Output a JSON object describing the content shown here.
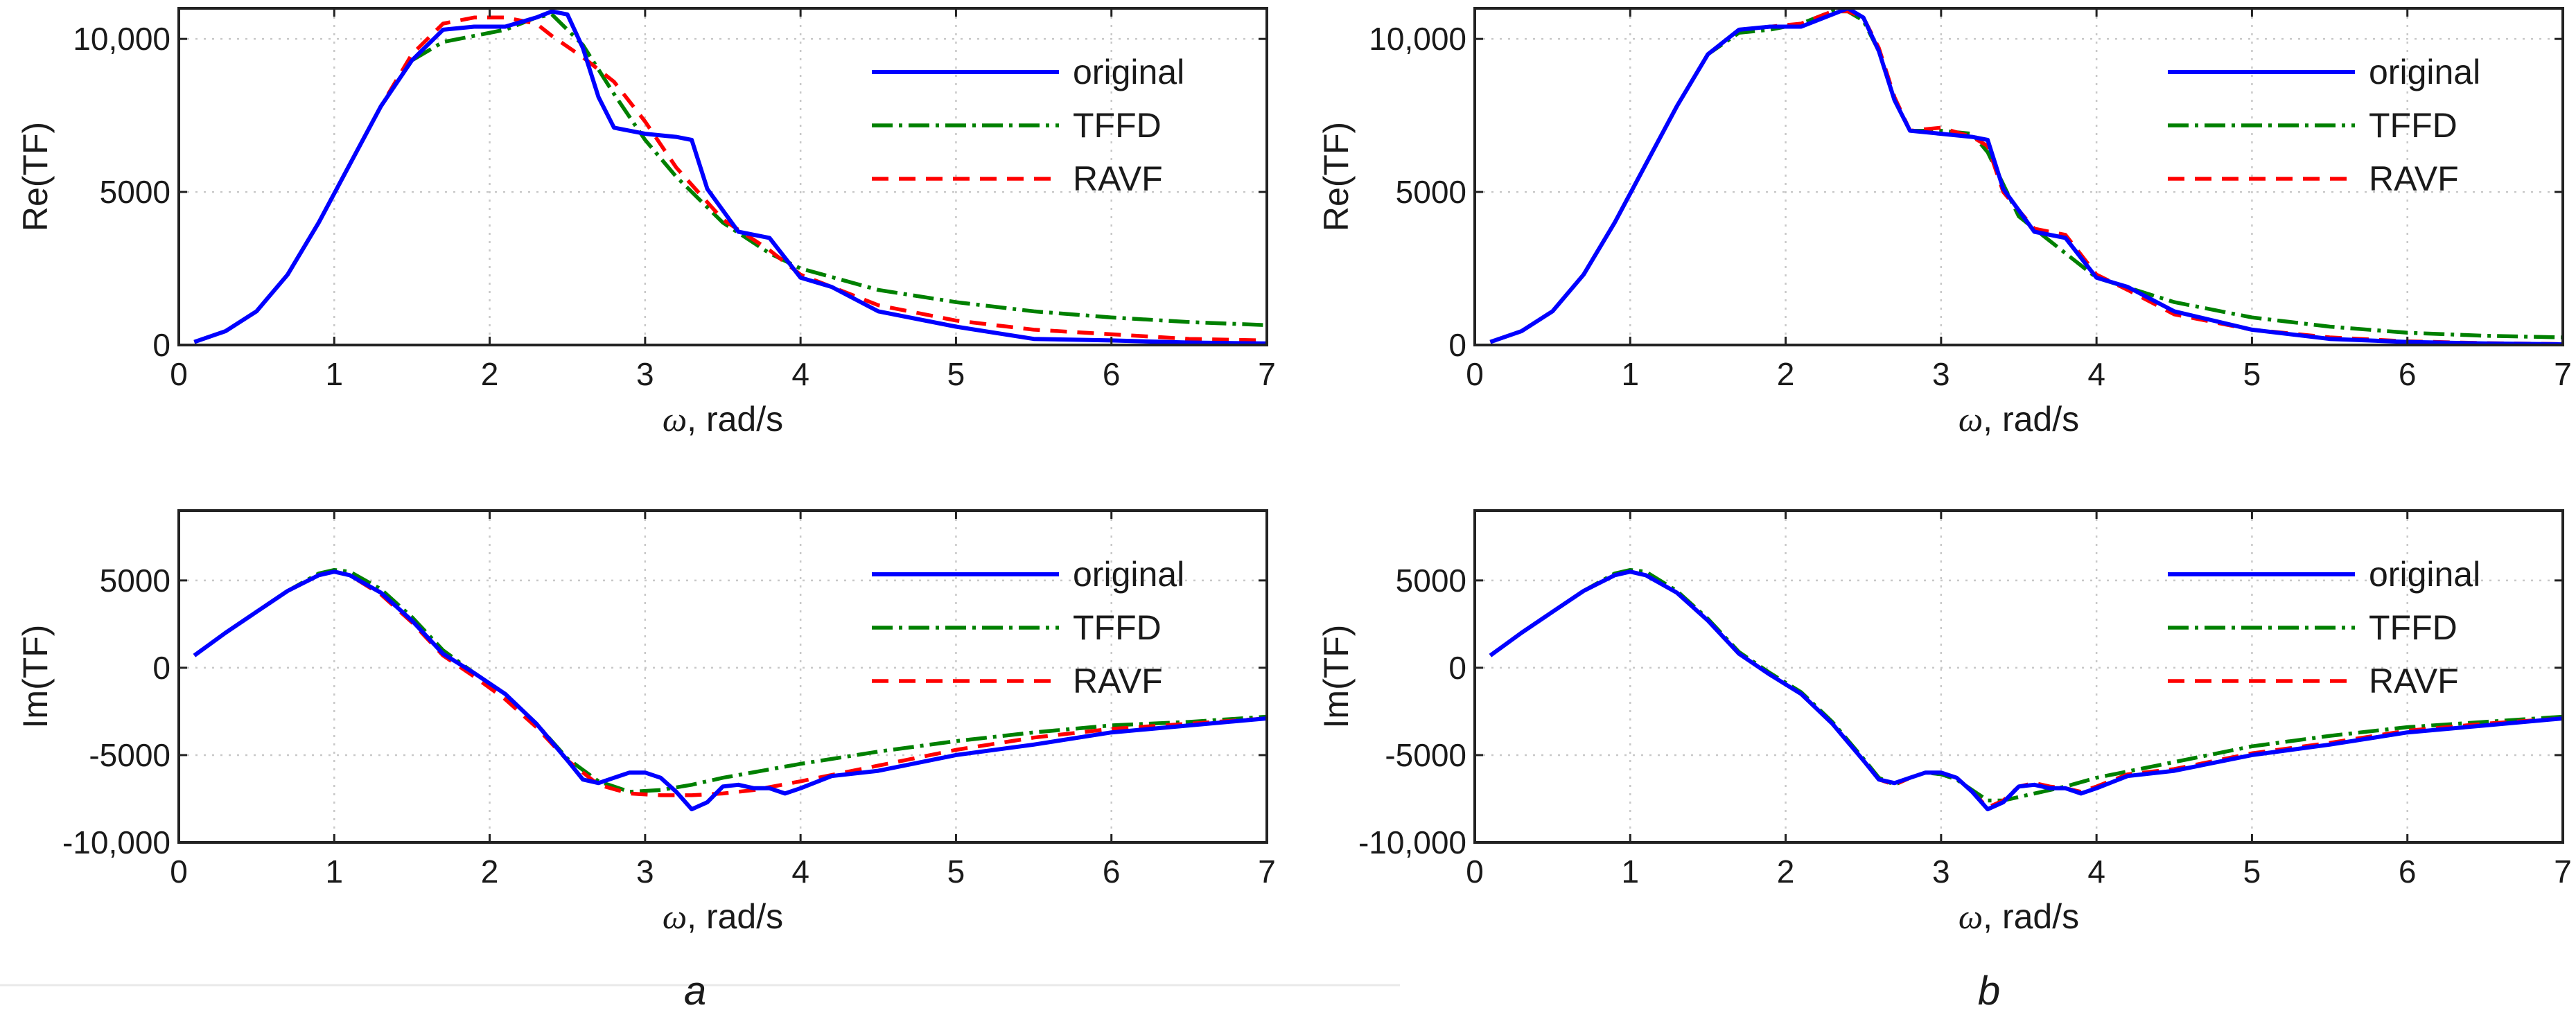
{
  "figure": {
    "panel_labels": [
      "a",
      "b"
    ]
  },
  "legend": {
    "items": [
      {
        "label": "original",
        "color": "#0000ff",
        "style": "solid"
      },
      {
        "label": "TFFD",
        "color": "#008000",
        "style": "dashdot"
      },
      {
        "label": "RAVF",
        "color": "#ff0000",
        "style": "dashed"
      }
    ]
  },
  "chart_data": [
    {
      "id": "a-re",
      "type": "line",
      "panel": "a",
      "title": "",
      "xlabel": "ω, rad/s",
      "ylabel": "Re(TF)",
      "xlim": [
        0,
        7
      ],
      "ylim": [
        0,
        11000
      ],
      "xticks": [
        0,
        1,
        2,
        3,
        4,
        5,
        6,
        7
      ],
      "yticks": [
        0,
        5000,
        10000
      ],
      "ytick_labels": [
        "0",
        "5000",
        "10,000"
      ],
      "series": [
        {
          "name": "original",
          "x": [
            0.1,
            0.3,
            0.5,
            0.7,
            0.9,
            1.1,
            1.3,
            1.5,
            1.7,
            1.9,
            2.1,
            2.3,
            2.4,
            2.5,
            2.6,
            2.7,
            2.8,
            3.0,
            3.2,
            3.3,
            3.4,
            3.6,
            3.8,
            4.0,
            4.2,
            4.5,
            5.0,
            5.5,
            6.0,
            6.5,
            7.0
          ],
          "y": [
            100,
            450,
            1100,
            2300,
            4000,
            5900,
            7800,
            9300,
            10300,
            10400,
            10400,
            10700,
            10900,
            10800,
            9700,
            8100,
            7100,
            6900,
            6800,
            6700,
            5100,
            3700,
            3500,
            2200,
            1900,
            1100,
            600,
            200,
            150,
            80,
            50
          ]
        },
        {
          "name": "TFFD",
          "x": [
            0.1,
            0.3,
            0.5,
            0.7,
            0.9,
            1.1,
            1.3,
            1.5,
            1.7,
            1.9,
            2.1,
            2.3,
            2.4,
            2.6,
            2.8,
            3.0,
            3.2,
            3.5,
            3.8,
            4.0,
            4.5,
            5.0,
            5.5,
            6.0,
            6.5,
            7.0
          ],
          "y": [
            100,
            450,
            1100,
            2300,
            4000,
            5900,
            7800,
            9300,
            9900,
            10100,
            10300,
            10700,
            10800,
            9800,
            8200,
            6700,
            5500,
            4000,
            3000,
            2500,
            1800,
            1400,
            1100,
            900,
            750,
            650
          ]
        },
        {
          "name": "RAVF",
          "x": [
            0.1,
            0.3,
            0.5,
            0.7,
            0.9,
            1.1,
            1.3,
            1.5,
            1.7,
            1.9,
            2.1,
            2.3,
            2.4,
            2.6,
            2.8,
            3.0,
            3.2,
            3.5,
            3.8,
            4.0,
            4.5,
            5.0,
            5.5,
            6.0,
            6.5,
            7.0
          ],
          "y": [
            100,
            450,
            1100,
            2300,
            4000,
            5900,
            7800,
            9500,
            10500,
            10700,
            10700,
            10500,
            10100,
            9400,
            8600,
            7300,
            5800,
            4100,
            3100,
            2300,
            1300,
            800,
            500,
            350,
            200,
            150
          ]
        }
      ]
    },
    {
      "id": "a-im",
      "type": "line",
      "panel": "a",
      "title": "",
      "xlabel": "ω, rad/s",
      "ylabel": "Im(TF)",
      "xlim": [
        0,
        7
      ],
      "ylim": [
        -10000,
        9000
      ],
      "xticks": [
        0,
        1,
        2,
        3,
        4,
        5,
        6,
        7
      ],
      "yticks": [
        -10000,
        -5000,
        0,
        5000
      ],
      "ytick_labels": [
        "-10,000",
        "-5000",
        "0",
        "5000"
      ],
      "series": [
        {
          "name": "original",
          "x": [
            0.1,
            0.3,
            0.5,
            0.7,
            0.9,
            1.0,
            1.1,
            1.3,
            1.5,
            1.7,
            1.9,
            2.1,
            2.3,
            2.5,
            2.6,
            2.7,
            2.8,
            2.9,
            3.0,
            3.1,
            3.2,
            3.3,
            3.4,
            3.5,
            3.6,
            3.7,
            3.8,
            3.9,
            4.0,
            4.2,
            4.5,
            5.0,
            5.5,
            6.0,
            6.5,
            7.0
          ],
          "y": [
            700,
            2000,
            3200,
            4400,
            5300,
            5500,
            5300,
            4300,
            2700,
            800,
            -300,
            -1500,
            -3200,
            -5300,
            -6400,
            -6600,
            -6300,
            -6000,
            -6000,
            -6300,
            -7100,
            -8100,
            -7700,
            -6800,
            -6700,
            -6900,
            -6900,
            -7200,
            -6900,
            -6200,
            -5900,
            -5000,
            -4400,
            -3700,
            -3300,
            -2900
          ]
        },
        {
          "name": "TFFD",
          "x": [
            0.1,
            0.3,
            0.5,
            0.7,
            0.9,
            1.0,
            1.1,
            1.3,
            1.5,
            1.7,
            1.9,
            2.1,
            2.3,
            2.5,
            2.7,
            2.9,
            3.1,
            3.3,
            3.5,
            4.0,
            4.5,
            5.0,
            5.5,
            6.0,
            6.5,
            7.0
          ],
          "y": [
            700,
            2000,
            3200,
            4400,
            5400,
            5600,
            5500,
            4500,
            2900,
            1000,
            -300,
            -1500,
            -3200,
            -5200,
            -6500,
            -7100,
            -7000,
            -6700,
            -6300,
            -5500,
            -4800,
            -4200,
            -3700,
            -3300,
            -3100,
            -2800
          ]
        },
        {
          "name": "RAVF",
          "x": [
            0.1,
            0.3,
            0.5,
            0.7,
            0.9,
            1.0,
            1.1,
            1.3,
            1.5,
            1.7,
            1.9,
            2.1,
            2.3,
            2.5,
            2.7,
            2.9,
            3.1,
            3.3,
            3.5,
            3.7,
            4.0,
            4.5,
            5.0,
            5.5,
            6.0,
            6.5,
            7.0
          ],
          "y": [
            700,
            2000,
            3200,
            4400,
            5300,
            5500,
            5300,
            4200,
            2600,
            700,
            -500,
            -1800,
            -3400,
            -5300,
            -6700,
            -7200,
            -7300,
            -7300,
            -7200,
            -7000,
            -6500,
            -5600,
            -4700,
            -4000,
            -3500,
            -3200,
            -2900
          ]
        }
      ]
    },
    {
      "id": "b-re",
      "type": "line",
      "panel": "b",
      "title": "",
      "xlabel": "ω, rad/s",
      "ylabel": "Re(TF)",
      "xlim": [
        0,
        7
      ],
      "ylim": [
        0,
        11000
      ],
      "xticks": [
        0,
        1,
        2,
        3,
        4,
        5,
        6,
        7
      ],
      "yticks": [
        0,
        5000,
        10000
      ],
      "ytick_labels": [
        "0",
        "5000",
        "10,000"
      ],
      "series": [
        {
          "name": "original",
          "x": [
            0.1,
            0.3,
            0.5,
            0.7,
            0.9,
            1.1,
            1.3,
            1.5,
            1.7,
            1.9,
            2.1,
            2.3,
            2.4,
            2.5,
            2.6,
            2.7,
            2.8,
            3.0,
            3.2,
            3.3,
            3.4,
            3.6,
            3.8,
            4.0,
            4.2,
            4.5,
            5.0,
            5.5,
            6.0,
            6.5,
            7.0
          ],
          "y": [
            100,
            450,
            1100,
            2300,
            4000,
            5900,
            7800,
            9500,
            10300,
            10400,
            10400,
            10800,
            11000,
            10700,
            9600,
            8000,
            7000,
            6900,
            6800,
            6700,
            5100,
            3700,
            3500,
            2200,
            1900,
            1100,
            500,
            200,
            100,
            50,
            20
          ]
        },
        {
          "name": "TFFD",
          "x": [
            0.1,
            0.3,
            0.5,
            0.7,
            0.9,
            1.1,
            1.3,
            1.5,
            1.7,
            1.9,
            2.1,
            2.3,
            2.4,
            2.5,
            2.6,
            2.7,
            2.8,
            3.0,
            3.2,
            3.3,
            3.5,
            3.8,
            4.0,
            4.5,
            5.0,
            5.5,
            6.0,
            6.5,
            7.0
          ],
          "y": [
            100,
            450,
            1100,
            2300,
            4000,
            5900,
            7800,
            9500,
            10200,
            10300,
            10500,
            10900,
            10900,
            10600,
            9600,
            8000,
            7000,
            7000,
            6900,
            6300,
            4200,
            3000,
            2200,
            1400,
            900,
            600,
            400,
            300,
            250
          ]
        },
        {
          "name": "RAVF",
          "x": [
            0.1,
            0.3,
            0.5,
            0.7,
            0.9,
            1.1,
            1.3,
            1.5,
            1.7,
            1.9,
            2.1,
            2.3,
            2.4,
            2.5,
            2.6,
            2.7,
            2.8,
            3.0,
            3.2,
            3.3,
            3.4,
            3.6,
            3.8,
            4.0,
            4.2,
            4.5,
            5.0,
            5.5,
            6.0,
            6.5,
            7.0
          ],
          "y": [
            100,
            450,
            1100,
            2300,
            4000,
            5900,
            7800,
            9500,
            10300,
            10400,
            10500,
            10900,
            10900,
            10700,
            9700,
            8100,
            7000,
            7100,
            6800,
            6500,
            5000,
            3800,
            3600,
            2300,
            1800,
            1000,
            500,
            250,
            120,
            60,
            30
          ]
        }
      ]
    },
    {
      "id": "b-im",
      "type": "line",
      "panel": "b",
      "title": "",
      "xlabel": "ω, rad/s",
      "ylabel": "Im(TF)",
      "xlim": [
        0,
        7
      ],
      "ylim": [
        -10000,
        9000
      ],
      "xticks": [
        0,
        1,
        2,
        3,
        4,
        5,
        6,
        7
      ],
      "yticks": [
        -10000,
        -5000,
        0,
        5000
      ],
      "ytick_labels": [
        "-10,000",
        "-5000",
        "0",
        "5000"
      ],
      "series": [
        {
          "name": "original",
          "x": [
            0.1,
            0.3,
            0.5,
            0.7,
            0.9,
            1.0,
            1.1,
            1.3,
            1.5,
            1.7,
            1.9,
            2.1,
            2.3,
            2.5,
            2.6,
            2.7,
            2.8,
            2.9,
            3.0,
            3.1,
            3.2,
            3.3,
            3.4,
            3.5,
            3.6,
            3.7,
            3.8,
            3.9,
            4.0,
            4.2,
            4.5,
            5.0,
            5.5,
            6.0,
            6.5,
            7.0
          ],
          "y": [
            700,
            2000,
            3200,
            4400,
            5300,
            5500,
            5300,
            4300,
            2700,
            800,
            -400,
            -1500,
            -3200,
            -5300,
            -6400,
            -6600,
            -6300,
            -6000,
            -6000,
            -6300,
            -7100,
            -8100,
            -7700,
            -6800,
            -6700,
            -6900,
            -6900,
            -7200,
            -6900,
            -6200,
            -5900,
            -5000,
            -4400,
            -3700,
            -3300,
            -2900
          ]
        },
        {
          "name": "TFFD",
          "x": [
            0.1,
            0.3,
            0.5,
            0.7,
            0.9,
            1.0,
            1.1,
            1.3,
            1.5,
            1.7,
            1.9,
            2.1,
            2.3,
            2.5,
            2.6,
            2.7,
            2.8,
            2.9,
            3.0,
            3.1,
            3.2,
            3.3,
            3.4,
            3.6,
            3.8,
            4.0,
            4.5,
            5.0,
            5.5,
            6.0,
            6.5,
            7.0
          ],
          "y": [
            700,
            2000,
            3200,
            4400,
            5400,
            5600,
            5500,
            4400,
            2800,
            900,
            -300,
            -1400,
            -3100,
            -5200,
            -6300,
            -6700,
            -6300,
            -6000,
            -6100,
            -6400,
            -7000,
            -7600,
            -7600,
            -7200,
            -6800,
            -6300,
            -5400,
            -4500,
            -3900,
            -3400,
            -3100,
            -2800
          ]
        },
        {
          "name": "RAVF",
          "x": [
            0.1,
            0.3,
            0.5,
            0.7,
            0.9,
            1.0,
            1.1,
            1.3,
            1.5,
            1.7,
            1.9,
            2.1,
            2.3,
            2.5,
            2.6,
            2.7,
            2.8,
            2.9,
            3.0,
            3.1,
            3.2,
            3.3,
            3.4,
            3.5,
            3.6,
            3.7,
            3.8,
            3.9,
            4.0,
            4.2,
            4.5,
            5.0,
            5.5,
            6.0,
            6.5,
            7.0
          ],
          "y": [
            700,
            2000,
            3200,
            4400,
            5300,
            5500,
            5300,
            4300,
            2700,
            800,
            -400,
            -1500,
            -3200,
            -5300,
            -6400,
            -6700,
            -6300,
            -6000,
            -6000,
            -6300,
            -7100,
            -8000,
            -7600,
            -6800,
            -6600,
            -6800,
            -6900,
            -7100,
            -6800,
            -6100,
            -5800,
            -4900,
            -4300,
            -3600,
            -3200,
            -2900
          ]
        }
      ]
    }
  ]
}
